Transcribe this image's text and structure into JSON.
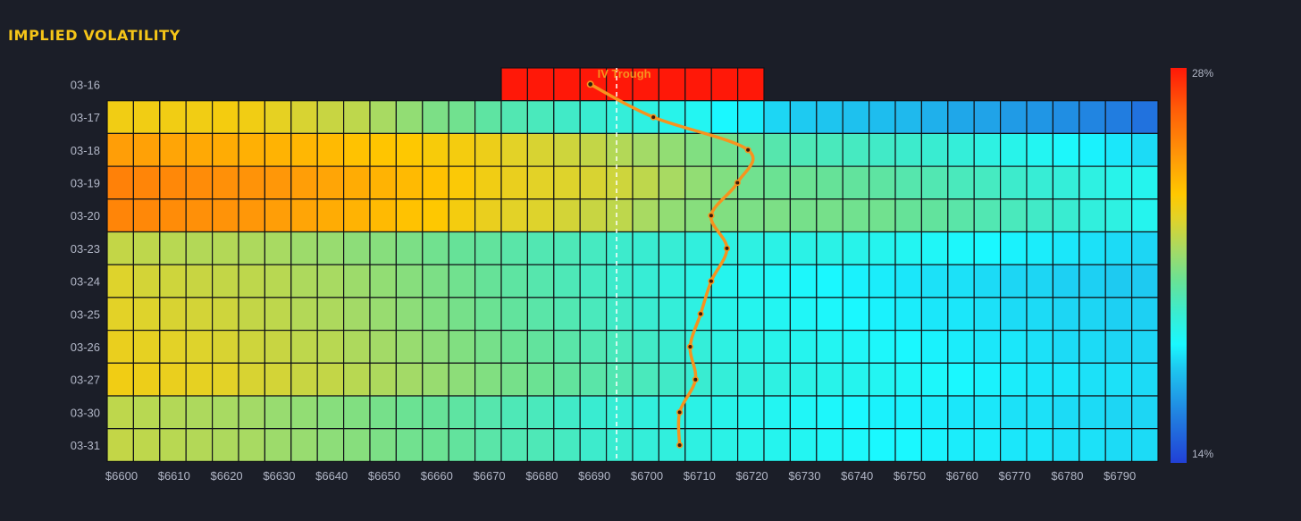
{
  "title": "IMPLIED VOLATILITY",
  "colors": {
    "background": "#1b1e28",
    "title": "#f5c518",
    "tick_text": "#b2b7c7",
    "trough_line": "#f7931e",
    "trough_label": "#f7931e",
    "atm_line": "#ffffff"
  },
  "chart_data": {
    "type": "heatmap",
    "title": "IMPLIED VOLATILITY",
    "x_categories": [
      "$6600",
      "$6605",
      "$6610",
      "$6615",
      "$6620",
      "$6625",
      "$6630",
      "$6635",
      "$6640",
      "$6645",
      "$6650",
      "$6655",
      "$6660",
      "$6665",
      "$6670",
      "$6675",
      "$6680",
      "$6685",
      "$6690",
      "$6695",
      "$6700",
      "$6705",
      "$6710",
      "$6715",
      "$6720",
      "$6725",
      "$6730",
      "$6735",
      "$6740",
      "$6745",
      "$6750",
      "$6755",
      "$6760",
      "$6765",
      "$6770",
      "$6775",
      "$6780",
      "$6785",
      "$6790",
      "$6795"
    ],
    "x_tick_labels": [
      "$6600",
      "$6610",
      "$6620",
      "$6630",
      "$6640",
      "$6650",
      "$6660",
      "$6670",
      "$6680",
      "$6690",
      "$6700",
      "$6710",
      "$6720",
      "$6730",
      "$6740",
      "$6750",
      "$6760",
      "$6770",
      "$6780",
      "$6790"
    ],
    "y_categories": [
      "03-16",
      "03-17",
      "03-18",
      "03-19",
      "03-20",
      "03-23",
      "03-24",
      "03-25",
      "03-26",
      "03-27",
      "03-30",
      "03-31"
    ],
    "colorbar": {
      "min_label": "14%",
      "max_label": "28%",
      "min": 14,
      "max": 28
    },
    "atm_strike": 6697,
    "iv_trough": {
      "label": "IV Trough",
      "strikes": [
        6692,
        6704,
        6722,
        6720,
        6715,
        6718,
        6715,
        6713,
        6711,
        6712,
        6709,
        6709
      ]
    },
    "rows": [
      {
        "expiry": "03-16",
        "first_strike_index": 15,
        "values": [
          28,
          28,
          28,
          28,
          28,
          28,
          28,
          28,
          28,
          28
        ]
      },
      {
        "expiry": "03-17",
        "first_strike_index": 0,
        "values": [
          23.1,
          23.1,
          23.1,
          23.1,
          23.2,
          23.1,
          22.8,
          22.5,
          22.2,
          22.0,
          21.6,
          21.2,
          20.8,
          20.6,
          20.2,
          19.9,
          19.7,
          19.5,
          19.3,
          19.1,
          18.9,
          18.7,
          18.5,
          18.2,
          18.0,
          17.6,
          17.4,
          17.3,
          17.2,
          17.1,
          17.0,
          16.8,
          16.6,
          16.5,
          16.3,
          16.2,
          16.0,
          15.8,
          15.6,
          15.3
        ]
      },
      {
        "expiry": "03-18",
        "first_strike_index": 0,
        "values": [
          24.7,
          24.6,
          24.5,
          24.4,
          24.3,
          24.2,
          24.1,
          24.0,
          23.9,
          23.7,
          23.6,
          23.5,
          23.3,
          23.2,
          23.0,
          22.7,
          22.5,
          22.3,
          22.1,
          21.8,
          21.5,
          21.2,
          20.9,
          20.6,
          20.3,
          20.0,
          19.8,
          19.7,
          19.6,
          19.5,
          19.4,
          19.3,
          19.1,
          18.9,
          18.7,
          18.5,
          18.3,
          18.1,
          17.9,
          17.7
        ]
      },
      {
        "expiry": "03-19",
        "first_strike_index": 0,
        "values": [
          25.5,
          25.4,
          25.3,
          25.2,
          25.1,
          25.0,
          24.9,
          24.7,
          24.5,
          24.3,
          24.1,
          23.9,
          23.7,
          23.4,
          23.1,
          22.9,
          22.7,
          22.6,
          22.5,
          22.3,
          22.0,
          21.6,
          21.2,
          20.9,
          20.6,
          20.5,
          20.5,
          20.4,
          20.3,
          20.2,
          20.0,
          19.9,
          19.7,
          19.6,
          19.4,
          19.2,
          19.1,
          18.9,
          18.7,
          18.6
        ]
      },
      {
        "expiry": "03-20",
        "first_strike_index": 0,
        "values": [
          25.4,
          25.3,
          25.2,
          25.1,
          25.0,
          24.9,
          24.7,
          24.5,
          24.3,
          24.1,
          23.9,
          23.7,
          23.5,
          23.2,
          22.9,
          22.7,
          22.6,
          22.4,
          22.2,
          22.0,
          21.6,
          21.2,
          21.0,
          20.9,
          20.8,
          20.8,
          20.7,
          20.7,
          20.6,
          20.6,
          20.4,
          20.3,
          20.1,
          19.9,
          19.7,
          19.5,
          19.3,
          19.0,
          18.9,
          18.6
        ]
      },
      {
        "expiry": "03-23",
        "first_strike_index": 0,
        "values": [
          22.1,
          22.0,
          21.9,
          21.8,
          21.8,
          21.7,
          21.6,
          21.4,
          21.3,
          21.1,
          21.0,
          20.8,
          20.6,
          20.4,
          20.3,
          20.1,
          19.9,
          19.8,
          19.6,
          19.4,
          19.3,
          19.2,
          19.0,
          18.9,
          18.9,
          18.8,
          18.8,
          18.8,
          18.7,
          18.6,
          18.5,
          18.4,
          18.3,
          18.2,
          18.1,
          18.0,
          17.9,
          17.8,
          17.7,
          17.6
        ]
      },
      {
        "expiry": "03-24",
        "first_strike_index": 0,
        "values": [
          22.6,
          22.4,
          22.3,
          22.2,
          22.1,
          22.0,
          21.9,
          21.7,
          21.6,
          21.4,
          21.2,
          21.0,
          20.8,
          20.6,
          20.4,
          20.2,
          20.0,
          19.8,
          19.6,
          19.4,
          19.2,
          19.0,
          18.8,
          18.6,
          18.5,
          18.4,
          18.3,
          18.2,
          18.1,
          18.0,
          17.9,
          17.8,
          17.8,
          17.7,
          17.6,
          17.6,
          17.5,
          17.5,
          17.4,
          17.4
        ]
      },
      {
        "expiry": "03-25",
        "first_strike_index": 0,
        "values": [
          22.7,
          22.6,
          22.5,
          22.4,
          22.3,
          22.1,
          22.0,
          21.8,
          21.7,
          21.5,
          21.3,
          21.1,
          20.9,
          20.7,
          20.5,
          20.3,
          20.1,
          19.9,
          19.7,
          19.5,
          19.3,
          19.1,
          18.9,
          18.7,
          18.6,
          18.5,
          18.4,
          18.3,
          18.2,
          18.1,
          18.0,
          17.9,
          17.9,
          17.8,
          17.7,
          17.7,
          17.6,
          17.6,
          17.5,
          17.5
        ]
      },
      {
        "expiry": "03-26",
        "first_strike_index": 0,
        "values": [
          22.9,
          22.8,
          22.7,
          22.6,
          22.5,
          22.3,
          22.2,
          22.0,
          21.9,
          21.7,
          21.5,
          21.3,
          21.1,
          20.9,
          20.7,
          20.5,
          20.3,
          20.1,
          19.9,
          19.7,
          19.5,
          19.3,
          19.1,
          18.9,
          18.8,
          18.7,
          18.6,
          18.5,
          18.4,
          18.3,
          18.2,
          18.1,
          18.0,
          17.9,
          17.9,
          17.8,
          17.7,
          17.7,
          17.6,
          17.6
        ]
      },
      {
        "expiry": "03-27",
        "first_strike_index": 0,
        "values": [
          23.1,
          23.0,
          22.9,
          22.8,
          22.7,
          22.5,
          22.4,
          22.2,
          22.1,
          21.9,
          21.7,
          21.5,
          21.3,
          21.1,
          20.9,
          20.7,
          20.5,
          20.3,
          20.1,
          19.9,
          19.7,
          19.5,
          19.3,
          19.1,
          19.0,
          18.9,
          18.8,
          18.7,
          18.6,
          18.5,
          18.4,
          18.3,
          18.2,
          18.1,
          18.0,
          17.9,
          17.9,
          17.8,
          17.8,
          17.7
        ]
      },
      {
        "expiry": "03-30",
        "first_strike_index": 0,
        "values": [
          22.0,
          21.9,
          21.8,
          21.7,
          21.6,
          21.5,
          21.3,
          21.2,
          21.0,
          20.9,
          20.7,
          20.5,
          20.4,
          20.2,
          20.0,
          19.8,
          19.7,
          19.5,
          19.3,
          19.2,
          19.0,
          18.9,
          18.8,
          18.7,
          18.6,
          18.5,
          18.4,
          18.3,
          18.2,
          18.1,
          18.1,
          18.0,
          17.9,
          17.9,
          17.8,
          17.8,
          17.7,
          17.7,
          17.6,
          17.6
        ]
      },
      {
        "expiry": "03-31",
        "first_strike_index": 0,
        "values": [
          22.1,
          22.0,
          21.9,
          21.8,
          21.7,
          21.6,
          21.4,
          21.3,
          21.1,
          21.0,
          20.8,
          20.6,
          20.5,
          20.3,
          20.1,
          19.9,
          19.8,
          19.6,
          19.4,
          19.3,
          19.1,
          19.0,
          18.9,
          18.8,
          18.7,
          18.6,
          18.5,
          18.4,
          18.3,
          18.2,
          18.2,
          18.1,
          18.0,
          18.0,
          17.9,
          17.9,
          17.8,
          17.8,
          17.7,
          17.7
        ]
      }
    ]
  }
}
